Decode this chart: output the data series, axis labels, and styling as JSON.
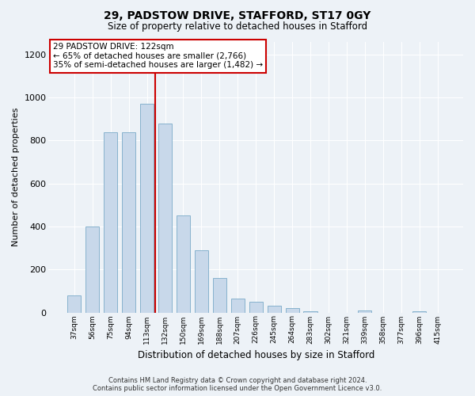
{
  "title1": "29, PADSTOW DRIVE, STAFFORD, ST17 0GY",
  "title2": "Size of property relative to detached houses in Stafford",
  "xlabel": "Distribution of detached houses by size in Stafford",
  "ylabel": "Number of detached properties",
  "categories": [
    "37sqm",
    "56sqm",
    "75sqm",
    "94sqm",
    "113sqm",
    "132sqm",
    "150sqm",
    "169sqm",
    "188sqm",
    "207sqm",
    "226sqm",
    "245sqm",
    "264sqm",
    "283sqm",
    "302sqm",
    "321sqm",
    "339sqm",
    "358sqm",
    "377sqm",
    "396sqm",
    "415sqm"
  ],
  "values": [
    80,
    400,
    840,
    840,
    970,
    880,
    450,
    290,
    160,
    65,
    50,
    30,
    20,
    5,
    0,
    0,
    10,
    0,
    0,
    5,
    0
  ],
  "bar_color": "#c8d8ea",
  "bar_edge_color": "#7aaac8",
  "vline_color": "#cc0000",
  "annotation_text": "29 PADSTOW DRIVE: 122sqm\n← 65% of detached houses are smaller (2,766)\n35% of semi-detached houses are larger (1,482) →",
  "annotation_box_color": "#ffffff",
  "annotation_box_edgecolor": "#cc0000",
  "background_color": "#edf2f7",
  "grid_color": "#ffffff",
  "ylim": [
    0,
    1260
  ],
  "yticks": [
    0,
    200,
    400,
    600,
    800,
    1000,
    1200
  ],
  "footnote1": "Contains HM Land Registry data © Crown copyright and database right 2024.",
  "footnote2": "Contains public sector information licensed under the Open Government Licence v3.0."
}
